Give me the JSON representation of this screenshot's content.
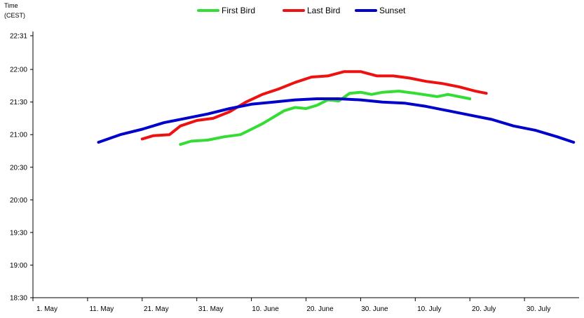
{
  "chart_data": {
    "type": "line",
    "ylabel_line1": "Time",
    "ylabel_line2": "(CEST)",
    "y_ticks": [
      "22:31",
      "22:00",
      "21:30",
      "21:00",
      "20:30",
      "20:00",
      "19:30",
      "19:00",
      "18:30"
    ],
    "y_tick_minutes": [
      1351,
      1320,
      1290,
      1260,
      1230,
      1200,
      1170,
      1140,
      1110
    ],
    "ylim": [
      "18:30",
      "22:31"
    ],
    "x_ticks": [
      "1. May",
      "11. May",
      "21. May",
      "31. May",
      "10. June",
      "20. June",
      "30. June",
      "10. July",
      "20. July",
      "30. July"
    ],
    "x_tick_dates": [
      "2000-05-01",
      "2000-05-11",
      "2000-05-21",
      "2000-05-31",
      "2000-06-10",
      "2000-06-20",
      "2000-06-30",
      "2000-07-10",
      "2000-07-20",
      "2000-07-30"
    ],
    "xlim": [
      "2000-05-01",
      "2000-08-09"
    ],
    "legend_position": "top-center",
    "grid": false,
    "series": [
      {
        "name": "First Bird",
        "color": "#33dd33",
        "points": [
          [
            "2000-05-28",
            "20:51"
          ],
          [
            "2000-05-30",
            "20:54"
          ],
          [
            "2000-06-02",
            "20:55"
          ],
          [
            "2000-06-05",
            "20:58"
          ],
          [
            "2000-06-08",
            "21:00"
          ],
          [
            "2000-06-10",
            "21:05"
          ],
          [
            "2000-06-12",
            "21:10"
          ],
          [
            "2000-06-14",
            "21:16"
          ],
          [
            "2000-06-16",
            "21:22"
          ],
          [
            "2000-06-18",
            "21:25"
          ],
          [
            "2000-06-20",
            "21:24"
          ],
          [
            "2000-06-22",
            "21:27"
          ],
          [
            "2000-06-24",
            "21:32"
          ],
          [
            "2000-06-26",
            "21:31"
          ],
          [
            "2000-06-28",
            "21:38"
          ],
          [
            "2000-06-30",
            "21:39"
          ],
          [
            "2000-07-02",
            "21:37"
          ],
          [
            "2000-07-04",
            "21:39"
          ],
          [
            "2000-07-07",
            "21:40"
          ],
          [
            "2000-07-10",
            "21:38"
          ],
          [
            "2000-07-14",
            "21:35"
          ],
          [
            "2000-07-16",
            "21:37"
          ],
          [
            "2000-07-20",
            "21:33"
          ]
        ]
      },
      {
        "name": "Last Bird",
        "color": "#ee1111",
        "points": [
          [
            "2000-05-21",
            "20:56"
          ],
          [
            "2000-05-23",
            "20:59"
          ],
          [
            "2000-05-26",
            "21:00"
          ],
          [
            "2000-05-28",
            "21:08"
          ],
          [
            "2000-05-31",
            "21:13"
          ],
          [
            "2000-06-03",
            "21:15"
          ],
          [
            "2000-06-06",
            "21:21"
          ],
          [
            "2000-06-09",
            "21:30"
          ],
          [
            "2000-06-12",
            "21:37"
          ],
          [
            "2000-06-15",
            "21:42"
          ],
          [
            "2000-06-18",
            "21:48"
          ],
          [
            "2000-06-21",
            "21:53"
          ],
          [
            "2000-06-24",
            "21:54"
          ],
          [
            "2000-06-27",
            "21:58"
          ],
          [
            "2000-06-30",
            "21:58"
          ],
          [
            "2000-07-03",
            "21:54"
          ],
          [
            "2000-07-06",
            "21:54"
          ],
          [
            "2000-07-09",
            "21:52"
          ],
          [
            "2000-07-12",
            "21:49"
          ],
          [
            "2000-07-15",
            "21:47"
          ],
          [
            "2000-07-18",
            "21:44"
          ],
          [
            "2000-07-21",
            "21:40"
          ],
          [
            "2000-07-23",
            "21:38"
          ]
        ]
      },
      {
        "name": "Sunset",
        "color": "#0000cc",
        "points": [
          [
            "2000-05-13",
            "20:53"
          ],
          [
            "2000-05-17",
            "21:00"
          ],
          [
            "2000-05-21",
            "21:05"
          ],
          [
            "2000-05-25",
            "21:11"
          ],
          [
            "2000-05-29",
            "21:15"
          ],
          [
            "2000-06-02",
            "21:19"
          ],
          [
            "2000-06-06",
            "21:24"
          ],
          [
            "2000-06-10",
            "21:28"
          ],
          [
            "2000-06-14",
            "21:30"
          ],
          [
            "2000-06-18",
            "21:32"
          ],
          [
            "2000-06-22",
            "21:33"
          ],
          [
            "2000-06-26",
            "21:33"
          ],
          [
            "2000-06-30",
            "21:32"
          ],
          [
            "2000-07-04",
            "21:30"
          ],
          [
            "2000-07-08",
            "21:29"
          ],
          [
            "2000-07-12",
            "21:26"
          ],
          [
            "2000-07-16",
            "21:22"
          ],
          [
            "2000-07-20",
            "21:18"
          ],
          [
            "2000-07-24",
            "21:14"
          ],
          [
            "2000-07-28",
            "21:08"
          ],
          [
            "2000-08-01",
            "21:04"
          ],
          [
            "2000-08-05",
            "20:58"
          ],
          [
            "2000-08-08",
            "20:53"
          ]
        ]
      }
    ]
  }
}
